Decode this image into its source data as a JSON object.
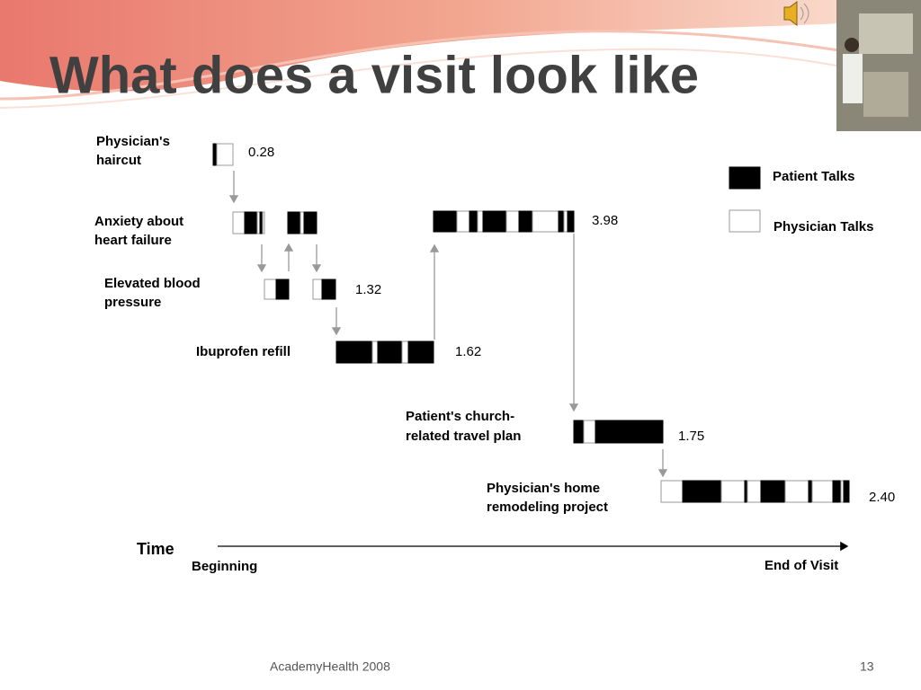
{
  "title": "What does a visit look like",
  "topics": [
    {
      "label": [
        "Physician's",
        "haircut"
      ],
      "duration": "0.28"
    },
    {
      "label": [
        "Anxiety about",
        "heart failure"
      ],
      "duration": "3.98"
    },
    {
      "label": [
        "Elevated blood",
        "pressure"
      ],
      "duration": "1.32"
    },
    {
      "label": [
        "Ibuprofen refill"
      ],
      "duration": "1.62"
    },
    {
      "label": [
        "Patient's church-",
        "related travel plan"
      ],
      "duration": "1.75"
    },
    {
      "label": [
        "Physician's home",
        "remodeling project"
      ],
      "duration": "2.40"
    }
  ],
  "legend": [
    "Patient Talks",
    "Physician Talks"
  ],
  "axis": {
    "label": "Time",
    "start": "Beginning",
    "end": "End of Visit"
  },
  "footer": {
    "source": "AcademyHealth 2008",
    "page": "13"
  }
}
